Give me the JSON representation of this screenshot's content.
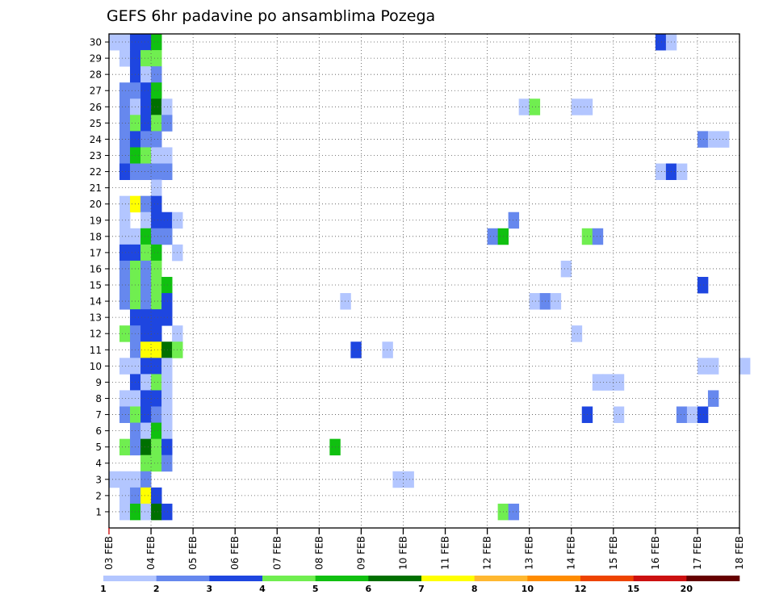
{
  "chart_data": {
    "type": "heatmap",
    "title": "GEFS 6hr padavine po ansamblima Pozega",
    "xlabel": "",
    "ylabel": "",
    "x_tick_labels": [
      "03 FEB",
      "04 FEB",
      "05 FEB",
      "06 FEB",
      "07 FEB",
      "08 FEB",
      "09 FEB",
      "10 FEB",
      "11 FEB",
      "12 FEB",
      "13 FEB",
      "14 FEB",
      "15 FEB",
      "16 FEB",
      "17 FEB",
      "18 FEB"
    ],
    "y_tick_labels": [
      "1",
      "2",
      "3",
      "4",
      "5",
      "6",
      "7",
      "8",
      "9",
      "10",
      "11",
      "12",
      "13",
      "14",
      "15",
      "16",
      "17",
      "18",
      "19",
      "20",
      "21",
      "22",
      "23",
      "24",
      "25",
      "26",
      "27",
      "28",
      "29",
      "30"
    ],
    "time_step_hours": 6,
    "grid": true,
    "legend": {
      "placement": "bottom",
      "labels": [
        "1",
        "2",
        "3",
        "4",
        "5",
        "6",
        "7",
        "8",
        "10",
        "12",
        "15",
        "20"
      ],
      "colors": [
        "#b3c6ff",
        "#6688ee",
        "#1e46e0",
        "#70ee50",
        "#10c010",
        "#007000",
        "#ffff00",
        "#ffb830",
        "#ff8c00",
        "#ee4400",
        "#cc1010",
        "#660000"
      ]
    },
    "level_colors": {
      "1": "#b3c6ff",
      "2": "#6688ee",
      "3": "#1e46e0",
      "4": "#70ee50",
      "5": "#10c010",
      "6": "#007000",
      "7": "#ffff00"
    },
    "cells_note": "each cell: [member, 6h-step index from 03 FEB 00Z, colour level]",
    "cells": [
      [
        30,
        0,
        1
      ],
      [
        30,
        1,
        1
      ],
      [
        30,
        2,
        3
      ],
      [
        30,
        3,
        3
      ],
      [
        30,
        4,
        5
      ],
      [
        30,
        52,
        3
      ],
      [
        30,
        53,
        1
      ],
      [
        29,
        1,
        1
      ],
      [
        29,
        2,
        3
      ],
      [
        29,
        3,
        4
      ],
      [
        29,
        4,
        4
      ],
      [
        28,
        2,
        3
      ],
      [
        28,
        3,
        1
      ],
      [
        28,
        4,
        2
      ],
      [
        27,
        1,
        2
      ],
      [
        27,
        2,
        2
      ],
      [
        27,
        3,
        3
      ],
      [
        27,
        4,
        5
      ],
      [
        26,
        1,
        2
      ],
      [
        26,
        2,
        1
      ],
      [
        26,
        3,
        3
      ],
      [
        26,
        4,
        6
      ],
      [
        26,
        5,
        1
      ],
      [
        26,
        39,
        1
      ],
      [
        26,
        40,
        4
      ],
      [
        26,
        44,
        1
      ],
      [
        26,
        45,
        1
      ],
      [
        25,
        1,
        2
      ],
      [
        25,
        2,
        4
      ],
      [
        25,
        3,
        3
      ],
      [
        25,
        4,
        4
      ],
      [
        25,
        5,
        2
      ],
      [
        24,
        1,
        2
      ],
      [
        24,
        2,
        3
      ],
      [
        24,
        3,
        2
      ],
      [
        24,
        4,
        2
      ],
      [
        24,
        56,
        2
      ],
      [
        24,
        57,
        1
      ],
      [
        24,
        58,
        1
      ],
      [
        23,
        1,
        2
      ],
      [
        23,
        2,
        5
      ],
      [
        23,
        3,
        4
      ],
      [
        23,
        4,
        1
      ],
      [
        23,
        5,
        1
      ],
      [
        22,
        1,
        3
      ],
      [
        22,
        2,
        2
      ],
      [
        22,
        3,
        2
      ],
      [
        22,
        4,
        2
      ],
      [
        22,
        5,
        2
      ],
      [
        22,
        52,
        1
      ],
      [
        22,
        53,
        3
      ],
      [
        22,
        54,
        1
      ],
      [
        21,
        4,
        1
      ],
      [
        20,
        1,
        1
      ],
      [
        20,
        2,
        7
      ],
      [
        20,
        3,
        2
      ],
      [
        20,
        4,
        3
      ],
      [
        19,
        1,
        1
      ],
      [
        19,
        3,
        1
      ],
      [
        19,
        4,
        3
      ],
      [
        19,
        5,
        3
      ],
      [
        19,
        6,
        1
      ],
      [
        19,
        38,
        2
      ],
      [
        18,
        1,
        1
      ],
      [
        18,
        2,
        1
      ],
      [
        18,
        3,
        5
      ],
      [
        18,
        4,
        2
      ],
      [
        18,
        5,
        2
      ],
      [
        18,
        36,
        2
      ],
      [
        18,
        37,
        5
      ],
      [
        18,
        45,
        4
      ],
      [
        18,
        46,
        2
      ],
      [
        17,
        1,
        3
      ],
      [
        17,
        2,
        3
      ],
      [
        17,
        3,
        4
      ],
      [
        17,
        4,
        5
      ],
      [
        17,
        6,
        1
      ],
      [
        16,
        1,
        2
      ],
      [
        16,
        2,
        4
      ],
      [
        16,
        3,
        2
      ],
      [
        16,
        4,
        4
      ],
      [
        16,
        43,
        1
      ],
      [
        15,
        1,
        2
      ],
      [
        15,
        2,
        4
      ],
      [
        15,
        3,
        2
      ],
      [
        15,
        4,
        4
      ],
      [
        15,
        5,
        5
      ],
      [
        15,
        56,
        3
      ],
      [
        14,
        1,
        2
      ],
      [
        14,
        2,
        4
      ],
      [
        14,
        3,
        2
      ],
      [
        14,
        4,
        4
      ],
      [
        14,
        5,
        3
      ],
      [
        14,
        22,
        1
      ],
      [
        14,
        40,
        1
      ],
      [
        14,
        41,
        2
      ],
      [
        14,
        42,
        1
      ],
      [
        13,
        2,
        3
      ],
      [
        13,
        3,
        3
      ],
      [
        13,
        4,
        3
      ],
      [
        13,
        5,
        3
      ],
      [
        12,
        1,
        4
      ],
      [
        12,
        2,
        2
      ],
      [
        12,
        3,
        3
      ],
      [
        12,
        4,
        3
      ],
      [
        12,
        6,
        1
      ],
      [
        12,
        44,
        1
      ],
      [
        11,
        2,
        2
      ],
      [
        11,
        3,
        7
      ],
      [
        11,
        4,
        7
      ],
      [
        11,
        5,
        6
      ],
      [
        11,
        6,
        4
      ],
      [
        11,
        23,
        3
      ],
      [
        11,
        26,
        1
      ],
      [
        10,
        1,
        1
      ],
      [
        10,
        2,
        1
      ],
      [
        10,
        3,
        3
      ],
      [
        10,
        4,
        3
      ],
      [
        10,
        5,
        1
      ],
      [
        10,
        56,
        1
      ],
      [
        10,
        57,
        1
      ],
      [
        10,
        60,
        1
      ],
      [
        9,
        2,
        3
      ],
      [
        9,
        3,
        1
      ],
      [
        9,
        4,
        4
      ],
      [
        9,
        5,
        1
      ],
      [
        9,
        46,
        1
      ],
      [
        9,
        47,
        1
      ],
      [
        9,
        48,
        1
      ],
      [
        8,
        1,
        1
      ],
      [
        8,
        2,
        1
      ],
      [
        8,
        3,
        3
      ],
      [
        8,
        4,
        3
      ],
      [
        8,
        5,
        1
      ],
      [
        8,
        57,
        2
      ],
      [
        7,
        1,
        2
      ],
      [
        7,
        2,
        4
      ],
      [
        7,
        3,
        3
      ],
      [
        7,
        4,
        2
      ],
      [
        7,
        5,
        1
      ],
      [
        7,
        45,
        3
      ],
      [
        7,
        48,
        1
      ],
      [
        7,
        54,
        2
      ],
      [
        7,
        55,
        1
      ],
      [
        7,
        56,
        3
      ],
      [
        6,
        2,
        2
      ],
      [
        6,
        3,
        1
      ],
      [
        6,
        4,
        5
      ],
      [
        6,
        5,
        1
      ],
      [
        5,
        1,
        4
      ],
      [
        5,
        2,
        2
      ],
      [
        5,
        3,
        6
      ],
      [
        5,
        4,
        4
      ],
      [
        5,
        5,
        3
      ],
      [
        5,
        21,
        5
      ],
      [
        4,
        3,
        4
      ],
      [
        4,
        4,
        4
      ],
      [
        4,
        5,
        2
      ],
      [
        3,
        0,
        1
      ],
      [
        3,
        1,
        1
      ],
      [
        3,
        2,
        1
      ],
      [
        3,
        3,
        2
      ],
      [
        3,
        27,
        1
      ],
      [
        3,
        28,
        1
      ],
      [
        2,
        1,
        1
      ],
      [
        2,
        2,
        2
      ],
      [
        2,
        3,
        7
      ],
      [
        2,
        4,
        3
      ],
      [
        1,
        1,
        1
      ],
      [
        1,
        2,
        5
      ],
      [
        1,
        3,
        1
      ],
      [
        1,
        4,
        6
      ],
      [
        1,
        5,
        3
      ],
      [
        1,
        37,
        4
      ],
      [
        1,
        38,
        2
      ]
    ]
  }
}
